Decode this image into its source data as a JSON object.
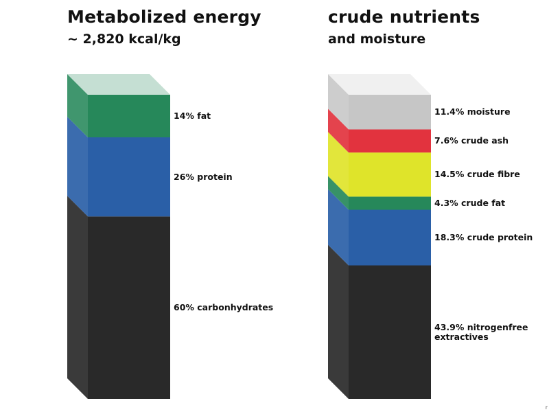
{
  "chart_data": [
    {
      "type": "bar",
      "title": "Metabolized energy",
      "subtitle": "~ 2,820 kcal/kg",
      "stacked": true,
      "segments": [
        {
          "name": "carbonhydrates",
          "value": 60,
          "label": "60% carbonhydrates",
          "color": "#292929"
        },
        {
          "name": "protein",
          "value": 26,
          "label": "26% protein",
          "color": "#2a5fa7"
        },
        {
          "name": "fat",
          "value": 14,
          "label": "14% fat",
          "color": "#26885a"
        }
      ]
    },
    {
      "type": "bar",
      "title": "crude nutrients",
      "subtitle": "and moisture",
      "stacked": true,
      "segments": [
        {
          "name": "nitrogenfree extractives",
          "value": 43.9,
          "label": "43.9% nitrogenfree extractives",
          "color": "#292929"
        },
        {
          "name": "crude protein",
          "value": 18.3,
          "label": "18.3% crude protein",
          "color": "#2a5fa7"
        },
        {
          "name": "crude fat",
          "value": 4.3,
          "label": "4.3% crude fat",
          "color": "#26885a"
        },
        {
          "name": "crude fibre",
          "value": 14.5,
          "label": "14.5% crude fibre",
          "color": "#dfe42a"
        },
        {
          "name": "crude ash",
          "value": 7.6,
          "label": "7.6% crude ash",
          "color": "#e2333e"
        },
        {
          "name": "moisture",
          "value": 11.4,
          "label": "11.4% moisture",
          "color": "#c6c6c6"
        }
      ]
    }
  ],
  "corner_mark": "r"
}
